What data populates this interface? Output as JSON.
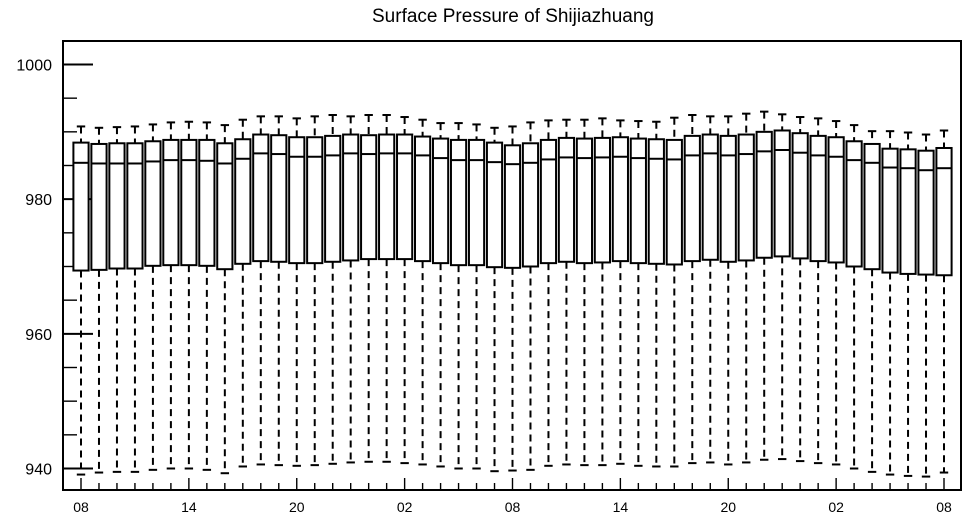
{
  "chart_data": {
    "type": "box",
    "title": "Surface Pressure of Shijiazhuang",
    "xlabel": "",
    "ylabel": "",
    "ylim": [
      938,
      1004
    ],
    "yticks": [
      940,
      960,
      980,
      1000
    ],
    "xtick_labels": [
      "08",
      "14",
      "20",
      "02",
      "08",
      "14",
      "20",
      "02",
      "08"
    ],
    "hours": [
      "08",
      "09",
      "10",
      "11",
      "12",
      "13",
      "14",
      "15",
      "16",
      "17",
      "18",
      "19",
      "20",
      "21",
      "22",
      "23",
      "00",
      "01",
      "02",
      "03",
      "04",
      "05",
      "06",
      "07",
      "08",
      "09",
      "10",
      "11",
      "12",
      "13",
      "14",
      "15",
      "16",
      "17",
      "18",
      "19",
      "20",
      "21",
      "22",
      "23",
      "00",
      "01",
      "02",
      "03",
      "04",
      "05",
      "06",
      "07",
      "08"
    ],
    "whisker_high": [
      990.8,
      990.6,
      990.7,
      990.8,
      991.1,
      991.4,
      991.5,
      991.4,
      991.0,
      991.8,
      992.3,
      992.3,
      992.0,
      992.3,
      992.5,
      992.3,
      992.5,
      992.5,
      992.2,
      991.8,
      991.3,
      991.3,
      991.1,
      990.6,
      990.8,
      991.4,
      991.7,
      991.8,
      991.8,
      992.0,
      991.7,
      991.6,
      991.5,
      992.1,
      992.5,
      992.3,
      992.3,
      992.7,
      993.0,
      992.6,
      992.2,
      992.0,
      991.6,
      991.0,
      990.1,
      990.1,
      989.9,
      989.6,
      990.2
    ],
    "q3": [
      988.4,
      988.2,
      988.3,
      988.3,
      988.6,
      988.8,
      988.8,
      988.8,
      988.3,
      988.9,
      989.6,
      989.5,
      989.2,
      989.2,
      989.4,
      989.6,
      989.5,
      989.6,
      989.6,
      989.3,
      989.0,
      988.8,
      988.8,
      988.4,
      988.0,
      988.3,
      988.8,
      989.1,
      989.0,
      989.1,
      989.2,
      989.0,
      988.9,
      988.8,
      989.4,
      989.6,
      989.4,
      989.6,
      990.0,
      990.2,
      989.8,
      989.4,
      989.2,
      988.6,
      988.2,
      987.5,
      987.4,
      987.2,
      987.6
    ],
    "median": [
      985.4,
      985.3,
      985.3,
      985.3,
      985.6,
      985.8,
      985.8,
      985.7,
      985.3,
      986.0,
      986.8,
      986.7,
      986.3,
      986.3,
      986.5,
      986.8,
      986.7,
      986.8,
      986.8,
      986.5,
      986.1,
      985.8,
      985.8,
      985.5,
      985.2,
      985.4,
      985.9,
      986.2,
      986.1,
      986.2,
      986.3,
      986.1,
      986.0,
      985.9,
      986.5,
      986.8,
      986.5,
      986.7,
      987.1,
      987.3,
      986.9,
      986.5,
      986.3,
      985.8,
      985.4,
      984.7,
      984.6,
      984.3,
      984.6
    ],
    "q1": [
      969.4,
      969.5,
      969.7,
      969.7,
      970.1,
      970.2,
      970.2,
      970.1,
      969.6,
      970.4,
      970.8,
      970.7,
      970.5,
      970.5,
      970.7,
      970.9,
      971.1,
      971.1,
      971.1,
      970.8,
      970.5,
      970.2,
      970.2,
      969.9,
      969.8,
      970.0,
      970.5,
      970.7,
      970.5,
      970.6,
      970.8,
      970.5,
      970.4,
      970.3,
      970.8,
      971.0,
      970.7,
      970.9,
      971.3,
      971.5,
      971.2,
      970.8,
      970.6,
      970.0,
      969.6,
      969.1,
      968.9,
      968.8,
      968.7
    ],
    "whisker_low": [
      939.1,
      939.4,
      939.5,
      939.5,
      939.8,
      940.0,
      940.0,
      939.8,
      939.3,
      940.3,
      940.6,
      940.5,
      940.4,
      940.5,
      940.7,
      940.9,
      941.0,
      941.0,
      940.8,
      940.6,
      940.3,
      940.0,
      940.0,
      939.6,
      939.7,
      939.8,
      940.4,
      940.6,
      940.5,
      940.5,
      940.7,
      940.4,
      940.3,
      940.3,
      940.8,
      940.9,
      940.6,
      940.9,
      941.3,
      941.4,
      941.1,
      940.8,
      940.6,
      940.0,
      939.5,
      939.1,
      938.9,
      938.8,
      939.4
    ]
  }
}
